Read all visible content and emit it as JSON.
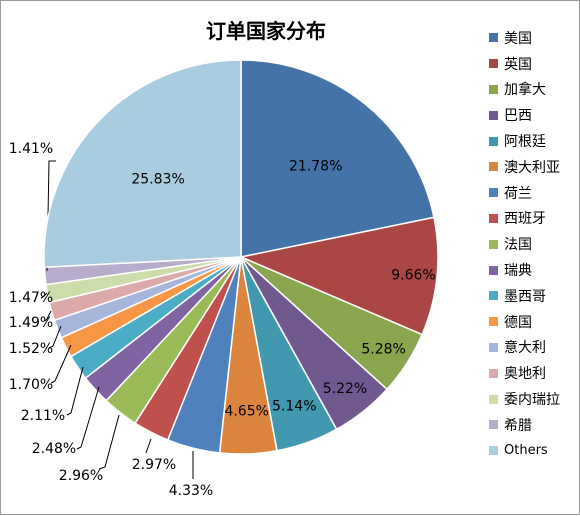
{
  "chart_data": {
    "type": "pie",
    "title": "订单国家分布",
    "legend_position": "right",
    "slices": [
      {
        "name": "美国",
        "value": 21.78,
        "label": "21.78%",
        "color": "#4572A7"
      },
      {
        "name": "英国",
        "value": 9.66,
        "label": "9.66%",
        "color": "#AA4643"
      },
      {
        "name": "加拿大",
        "value": 5.28,
        "label": "5.28%",
        "color": "#89A54E"
      },
      {
        "name": "巴西",
        "value": 5.22,
        "label": "5.22%",
        "color": "#71588F"
      },
      {
        "name": "阿根廷",
        "value": 5.14,
        "label": "5.14%",
        "color": "#4198AF"
      },
      {
        "name": "澳大利亚",
        "value": 4.65,
        "label": "4.65%",
        "color": "#DB843D"
      },
      {
        "name": "荷兰",
        "value": 4.33,
        "label": "4.33%",
        "color": "#4F81BD"
      },
      {
        "name": "西班牙",
        "value": 2.97,
        "label": "2.97%",
        "color": "#C0504D"
      },
      {
        "name": "法国",
        "value": 2.96,
        "label": "2.96%",
        "color": "#9BBB59"
      },
      {
        "name": "瑞典",
        "value": 2.48,
        "label": "2.48%",
        "color": "#8064A2"
      },
      {
        "name": "墨西哥",
        "value": 2.11,
        "label": "2.11%",
        "color": "#4BACC6"
      },
      {
        "name": "德国",
        "value": 1.7,
        "label": "1.70%",
        "color": "#F79646"
      },
      {
        "name": "意大利",
        "value": 1.52,
        "label": "1.52%",
        "color": "#A5B6DA"
      },
      {
        "name": "奥地利",
        "value": 1.49,
        "label": "1.49%",
        "color": "#DCA9A9"
      },
      {
        "name": "委内瑞拉",
        "value": 1.47,
        "label": "1.47%",
        "color": "#CCDDAA"
      },
      {
        "name": "希腊",
        "value": 1.41,
        "label": "1.41%",
        "color": "#B8ACCC"
      },
      {
        "name": "Others",
        "value": 25.83,
        "label": "25.83%",
        "color": "#A9CDE0"
      }
    ]
  }
}
